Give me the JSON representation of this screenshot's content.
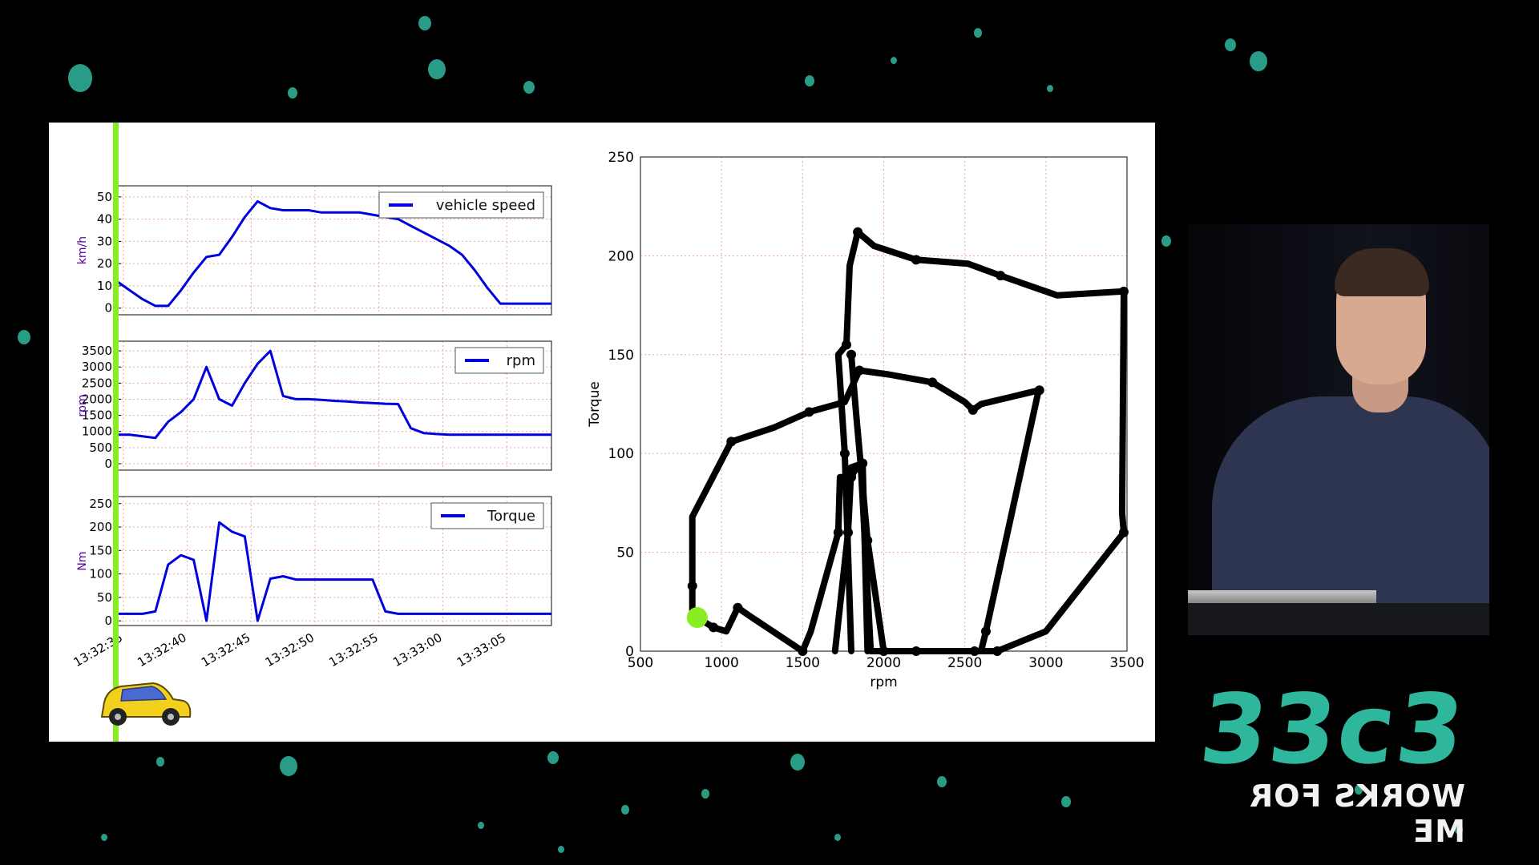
{
  "colors": {
    "series": "#0000dd",
    "ylabel": "#5500aa",
    "playhead": "#88ee22",
    "path": "#000000",
    "grid": "#e8a6a6",
    "axis": "#333333",
    "accent": "#2fb79e"
  },
  "charts": [
    {
      "type": "line",
      "ylabel": "km/h",
      "legend": "vehicle speed",
      "yticks": [
        0,
        10,
        20,
        30,
        40,
        50
      ],
      "ylim": [
        -3,
        55
      ],
      "t": [
        0,
        1,
        2,
        3,
        4,
        5,
        6,
        7,
        8,
        9,
        10,
        11,
        12,
        13,
        14,
        15,
        16,
        17,
        18,
        19,
        20,
        21,
        22,
        23,
        24,
        25,
        26,
        27,
        28,
        29,
        30,
        31,
        32,
        33,
        34
      ],
      "values": [
        12,
        8,
        4,
        1,
        1,
        8,
        16,
        23,
        24,
        32,
        41,
        48,
        45,
        44,
        44,
        44,
        43,
        43,
        43,
        43,
        42,
        41,
        40,
        37,
        34,
        31,
        28,
        24,
        17,
        9,
        2,
        2,
        2,
        2,
        2
      ]
    },
    {
      "type": "line",
      "ylabel": "rpm",
      "legend": "rpm",
      "yticks": [
        0,
        500,
        1000,
        1500,
        2000,
        2500,
        3000,
        3500
      ],
      "ylim": [
        -200,
        3800
      ],
      "t": [
        0,
        1,
        2,
        3,
        4,
        5,
        6,
        7,
        8,
        9,
        10,
        11,
        12,
        13,
        14,
        15,
        16,
        17,
        18,
        19,
        20,
        21,
        22,
        23,
        24,
        25,
        26,
        27,
        28,
        29,
        30,
        31,
        32,
        33,
        34
      ],
      "values": [
        900,
        900,
        850,
        800,
        1300,
        1600,
        2000,
        3000,
        2000,
        1800,
        2500,
        3100,
        3500,
        2100,
        2000,
        2000,
        1980,
        1950,
        1930,
        1900,
        1880,
        1860,
        1850,
        1100,
        950,
        920,
        900,
        900,
        900,
        900,
        900,
        900,
        900,
        900,
        900
      ]
    },
    {
      "type": "line",
      "ylabel": "Nm",
      "legend": "Torque",
      "yticks": [
        0,
        50,
        100,
        150,
        200,
        250
      ],
      "ylim": [
        -10,
        265
      ],
      "t": [
        0,
        1,
        2,
        3,
        4,
        5,
        6,
        7,
        8,
        9,
        10,
        11,
        12,
        13,
        14,
        15,
        16,
        17,
        18,
        19,
        20,
        21,
        22,
        23,
        24,
        25,
        26,
        27,
        28,
        29,
        30,
        31,
        32,
        33,
        34
      ],
      "values": [
        15,
        15,
        15,
        20,
        120,
        140,
        130,
        0,
        210,
        190,
        180,
        0,
        90,
        95,
        88,
        88,
        88,
        88,
        88,
        88,
        88,
        20,
        15,
        15,
        15,
        15,
        15,
        15,
        15,
        15,
        15,
        15,
        15,
        15,
        15
      ]
    }
  ],
  "time_axis": {
    "ticks": [
      "13:32:35",
      "13:32:40",
      "13:32:45",
      "13:32:50",
      "13:32:55",
      "13:33:00",
      "13:33:05"
    ]
  },
  "chart_data": {
    "type": "line",
    "xlabel": "rpm",
    "ylabel": "Torque",
    "xlim": [
      500,
      3500
    ],
    "ylim": [
      0,
      250
    ],
    "xticks": [
      500,
      1000,
      1500,
      2000,
      2500,
      3000,
      3500
    ],
    "yticks": [
      0,
      50,
      100,
      150,
      200,
      250
    ],
    "grid": true,
    "path": [
      [
        850,
        17
      ],
      [
        950,
        12
      ],
      [
        1030,
        10
      ],
      [
        1100,
        22
      ],
      [
        1170,
        18
      ],
      [
        1500,
        0
      ],
      [
        1550,
        10
      ],
      [
        1720,
        60
      ],
      [
        1730,
        88
      ],
      [
        1800,
        88
      ],
      [
        1830,
        93
      ],
      [
        1860,
        92
      ],
      [
        1920,
        0
      ],
      [
        2000,
        0
      ],
      [
        2180,
        0
      ],
      [
        2560,
        0
      ],
      [
        2600,
        0
      ],
      [
        2630,
        10
      ],
      [
        2950,
        130
      ],
      [
        2960,
        132
      ],
      [
        2600,
        125
      ],
      [
        2550,
        122
      ],
      [
        2500,
        126
      ],
      [
        2300,
        136
      ],
      [
        2030,
        140
      ],
      [
        1850,
        142
      ],
      [
        1760,
        126
      ],
      [
        1540,
        121
      ],
      [
        1320,
        113
      ],
      [
        1060,
        106
      ],
      [
        820,
        68
      ],
      [
        820,
        33
      ],
      [
        820,
        17
      ],
      [
        850,
        17
      ]
    ],
    "path2": [
      [
        1700,
        0
      ],
      [
        1780,
        60
      ],
      [
        1800,
        93
      ],
      [
        1870,
        95
      ],
      [
        1900,
        0
      ]
    ],
    "path3": [
      [
        1800,
        0
      ],
      [
        1760,
        100
      ],
      [
        1720,
        150
      ],
      [
        1770,
        155
      ],
      [
        1790,
        195
      ],
      [
        1840,
        212
      ],
      [
        1940,
        205
      ],
      [
        2200,
        198
      ],
      [
        2520,
        196
      ],
      [
        2720,
        190
      ],
      [
        3070,
        180
      ],
      [
        3480,
        182
      ],
      [
        3470,
        70
      ],
      [
        3480,
        60
      ],
      [
        3000,
        10
      ],
      [
        2700,
        0
      ],
      [
        2500,
        0
      ],
      [
        2200,
        0
      ],
      [
        2000,
        0
      ],
      [
        1900,
        56
      ],
      [
        1830,
        120
      ],
      [
        1800,
        150
      ]
    ],
    "marker": {
      "rpm": 850,
      "torque": 17
    }
  },
  "logo": {
    "main": "33c3",
    "sub": "WORKS FOR ME"
  }
}
